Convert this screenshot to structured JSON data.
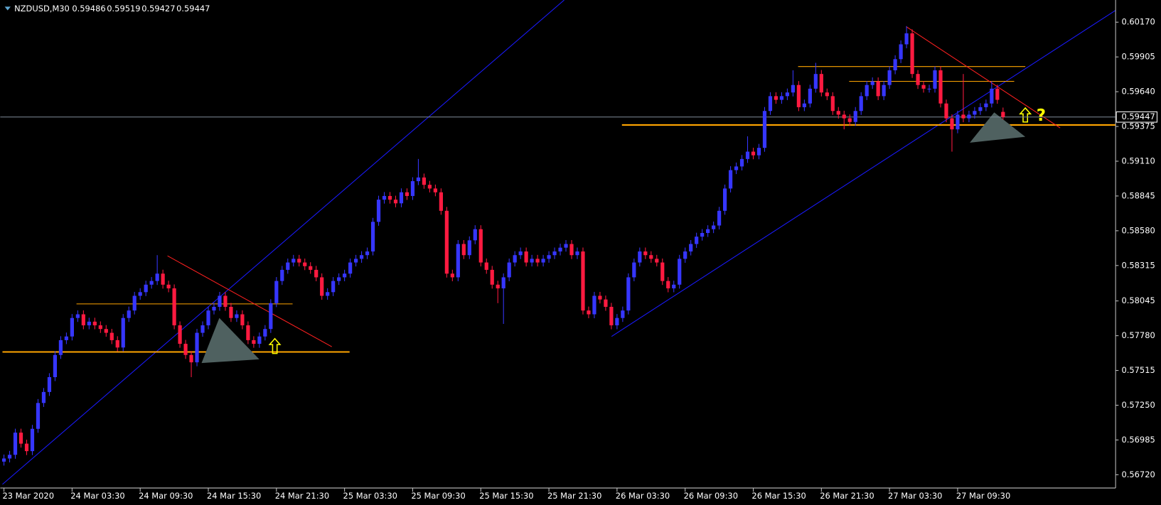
{
  "chart_data": {
    "type": "candlestick",
    "symbol": "NZDUSD,M30",
    "up_color": "#3636ff",
    "down_color": "#ff1a40",
    "price_line_color": "#7f8c99",
    "ylim": [
      0.56619,
      0.60339
    ],
    "yticks": [
      {
        "value": 0.5672,
        "label": "0.56720"
      },
      {
        "value": 0.56985,
        "label": "0.56985"
      },
      {
        "value": 0.5725,
        "label": "0.57250"
      },
      {
        "value": 0.57515,
        "label": "0.57515"
      },
      {
        "value": 0.5778,
        "label": "0.57780"
      },
      {
        "value": 0.58045,
        "label": "0.58045"
      },
      {
        "value": 0.58315,
        "label": "0.58315"
      },
      {
        "value": 0.5858,
        "label": "0.58580"
      },
      {
        "value": 0.58845,
        "label": "0.58845"
      },
      {
        "value": 0.5911,
        "label": "0.59110"
      },
      {
        "value": 0.59375,
        "label": "0.59375"
      },
      {
        "value": 0.5964,
        "label": "0.59640"
      },
      {
        "value": 0.59905,
        "label": "0.59905"
      },
      {
        "value": 0.6017,
        "label": "0.60170"
      }
    ],
    "xticks": [
      "23 Mar 2020",
      "24 Mar 03:30",
      "24 Mar 09:30",
      "24 Mar 15:30",
      "24 Mar 21:30",
      "25 Mar 03:30",
      "25 Mar 09:30",
      "25 Mar 15:30",
      "25 Mar 21:30",
      "26 Mar 03:30",
      "26 Mar 09:30",
      "26 Mar 15:30",
      "26 Mar 21:30",
      "27 Mar 03:30",
      "27 Mar 09:30"
    ],
    "annotations": [
      "?"
    ],
    "candles": [
      [
        0.5682,
        0.56874,
        0.5679,
        0.56844
      ],
      [
        0.56844,
        0.56902,
        0.56814,
        0.56872
      ],
      [
        0.56872,
        0.57071,
        0.56842,
        0.57041
      ],
      [
        0.57041,
        0.57071,
        0.56927,
        0.56957
      ],
      [
        0.56957,
        0.56987,
        0.5687,
        0.569
      ],
      [
        0.569,
        0.571,
        0.5687,
        0.5707
      ],
      [
        0.5707,
        0.57297,
        0.5704,
        0.57267
      ],
      [
        0.57267,
        0.57381,
        0.57237,
        0.57351
      ],
      [
        0.57351,
        0.57494,
        0.57321,
        0.57464
      ],
      [
        0.57464,
        0.57663,
        0.57434,
        0.57633
      ],
      [
        0.57633,
        0.57776,
        0.57603,
        0.57746
      ],
      [
        0.57746,
        0.57804,
        0.57716,
        0.57774
      ],
      [
        0.57774,
        0.57945,
        0.57744,
        0.57915
      ],
      [
        0.57915,
        0.57973,
        0.57885,
        0.57943
      ],
      [
        0.57943,
        0.57973,
        0.57829,
        0.57859
      ],
      [
        0.57859,
        0.57917,
        0.57829,
        0.57887
      ],
      [
        0.57887,
        0.57917,
        0.57829,
        0.57859
      ],
      [
        0.57859,
        0.57889,
        0.57801,
        0.57831
      ],
      [
        0.57831,
        0.57861,
        0.57772,
        0.57802
      ],
      [
        0.57802,
        0.57832,
        0.57716,
        0.57746
      ],
      [
        0.57746,
        0.57776,
        0.5766,
        0.5769
      ],
      [
        0.5769,
        0.57945,
        0.5766,
        0.57915
      ],
      [
        0.57915,
        0.58002,
        0.57885,
        0.57972
      ],
      [
        0.57972,
        0.58114,
        0.57942,
        0.58084
      ],
      [
        0.58084,
        0.58142,
        0.58054,
        0.58112
      ],
      [
        0.58112,
        0.58199,
        0.58082,
        0.58169
      ],
      [
        0.58169,
        0.58227,
        0.58139,
        0.58197
      ],
      [
        0.58197,
        0.58394,
        0.58167,
        0.58253
      ],
      [
        0.58253,
        0.58283,
        0.58139,
        0.58169
      ],
      [
        0.58169,
        0.58199,
        0.58111,
        0.58141
      ],
      [
        0.58141,
        0.58171,
        0.57829,
        0.57859
      ],
      [
        0.57859,
        0.57889,
        0.57688,
        0.57718
      ],
      [
        0.57718,
        0.57748,
        0.57603,
        0.57633
      ],
      [
        0.57633,
        0.57663,
        0.57464,
        0.57577
      ],
      [
        0.57577,
        0.57832,
        0.57547,
        0.57802
      ],
      [
        0.57802,
        0.57889,
        0.57772,
        0.57859
      ],
      [
        0.57859,
        0.58002,
        0.57829,
        0.57972
      ],
      [
        0.57972,
        0.5803,
        0.57942,
        0.58
      ],
      [
        0.58,
        0.58114,
        0.5797,
        0.58084
      ],
      [
        0.58084,
        0.58114,
        0.5797,
        0.58
      ],
      [
        0.58,
        0.5803,
        0.57885,
        0.57915
      ],
      [
        0.57915,
        0.57973,
        0.57885,
        0.57943
      ],
      [
        0.57943,
        0.57973,
        0.57829,
        0.57859
      ],
      [
        0.57859,
        0.57889,
        0.57716,
        0.57746
      ],
      [
        0.57746,
        0.57776,
        0.57688,
        0.57718
      ],
      [
        0.57718,
        0.57804,
        0.57688,
        0.57774
      ],
      [
        0.57774,
        0.57861,
        0.57744,
        0.57831
      ],
      [
        0.57831,
        0.58058,
        0.57801,
        0.58028
      ],
      [
        0.58028,
        0.58227,
        0.57998,
        0.58197
      ],
      [
        0.58197,
        0.58312,
        0.58167,
        0.58282
      ],
      [
        0.58282,
        0.58368,
        0.58252,
        0.58338
      ],
      [
        0.58338,
        0.58396,
        0.58308,
        0.58366
      ],
      [
        0.58366,
        0.58396,
        0.58308,
        0.58338
      ],
      [
        0.58338,
        0.58368,
        0.5828,
        0.5831
      ],
      [
        0.5831,
        0.5834,
        0.58252,
        0.58282
      ],
      [
        0.58282,
        0.58312,
        0.58195,
        0.58225
      ],
      [
        0.58225,
        0.58255,
        0.58054,
        0.58084
      ],
      [
        0.58084,
        0.58142,
        0.58054,
        0.58112
      ],
      [
        0.58112,
        0.58227,
        0.58082,
        0.58197
      ],
      [
        0.58197,
        0.58255,
        0.58167,
        0.58225
      ],
      [
        0.58225,
        0.58283,
        0.58195,
        0.58253
      ],
      [
        0.58253,
        0.58368,
        0.58223,
        0.58338
      ],
      [
        0.58338,
        0.58396,
        0.58308,
        0.58366
      ],
      [
        0.58366,
        0.58424,
        0.58336,
        0.58394
      ],
      [
        0.58394,
        0.58452,
        0.58364,
        0.58422
      ],
      [
        0.58422,
        0.58678,
        0.58392,
        0.58648
      ],
      [
        0.58648,
        0.58847,
        0.58618,
        0.58817
      ],
      [
        0.58817,
        0.58875,
        0.58787,
        0.58845
      ],
      [
        0.58845,
        0.58875,
        0.58787,
        0.58817
      ],
      [
        0.58817,
        0.58847,
        0.58759,
        0.58789
      ],
      [
        0.58789,
        0.58903,
        0.58759,
        0.58873
      ],
      [
        0.58873,
        0.58903,
        0.58815,
        0.58845
      ],
      [
        0.58845,
        0.58988,
        0.58815,
        0.58958
      ],
      [
        0.58958,
        0.59127,
        0.58928,
        0.58986
      ],
      [
        0.58986,
        0.59016,
        0.589,
        0.5893
      ],
      [
        0.5893,
        0.5896,
        0.58872,
        0.58902
      ],
      [
        0.58902,
        0.58932,
        0.58843,
        0.58873
      ],
      [
        0.58873,
        0.58903,
        0.58702,
        0.58732
      ],
      [
        0.58732,
        0.58762,
        0.58223,
        0.58253
      ],
      [
        0.58253,
        0.58283,
        0.58195,
        0.58225
      ],
      [
        0.58225,
        0.58509,
        0.58195,
        0.58479
      ],
      [
        0.58479,
        0.58509,
        0.58364,
        0.58394
      ],
      [
        0.58394,
        0.58537,
        0.58364,
        0.58507
      ],
      [
        0.58507,
        0.58622,
        0.58477,
        0.58592
      ],
      [
        0.58592,
        0.58622,
        0.58308,
        0.58338
      ],
      [
        0.58338,
        0.58368,
        0.58252,
        0.58282
      ],
      [
        0.58282,
        0.58312,
        0.58139,
        0.58169
      ],
      [
        0.58169,
        0.58199,
        0.58028,
        0.58141
      ],
      [
        0.58141,
        0.58255,
        0.5787,
        0.58225
      ],
      [
        0.58225,
        0.58368,
        0.58195,
        0.58338
      ],
      [
        0.58338,
        0.58424,
        0.58308,
        0.58394
      ],
      [
        0.58394,
        0.58452,
        0.58364,
        0.58422
      ],
      [
        0.58422,
        0.58452,
        0.58308,
        0.58338
      ],
      [
        0.58338,
        0.58396,
        0.58308,
        0.58366
      ],
      [
        0.58366,
        0.58396,
        0.58308,
        0.58338
      ],
      [
        0.58338,
        0.58396,
        0.58308,
        0.58366
      ],
      [
        0.58366,
        0.58424,
        0.58336,
        0.58394
      ],
      [
        0.58394,
        0.58452,
        0.58364,
        0.58422
      ],
      [
        0.58422,
        0.58481,
        0.58392,
        0.58451
      ],
      [
        0.58451,
        0.58509,
        0.58421,
        0.58479
      ],
      [
        0.58479,
        0.58509,
        0.58364,
        0.58394
      ],
      [
        0.58394,
        0.58452,
        0.58364,
        0.58422
      ],
      [
        0.58422,
        0.58452,
        0.57942,
        0.57972
      ],
      [
        0.57972,
        0.58002,
        0.57913,
        0.57943
      ],
      [
        0.57943,
        0.58114,
        0.57913,
        0.58084
      ],
      [
        0.58084,
        0.58114,
        0.58026,
        0.58056
      ],
      [
        0.58056,
        0.58086,
        0.5797,
        0.58
      ],
      [
        0.58,
        0.5803,
        0.57829,
        0.57859
      ],
      [
        0.57859,
        0.57945,
        0.57829,
        0.57915
      ],
      [
        0.57915,
        0.58002,
        0.57885,
        0.57972
      ],
      [
        0.57972,
        0.58255,
        0.57942,
        0.58225
      ],
      [
        0.58225,
        0.58368,
        0.58195,
        0.58338
      ],
      [
        0.58338,
        0.58452,
        0.58308,
        0.58422
      ],
      [
        0.58422,
        0.58452,
        0.58364,
        0.58394
      ],
      [
        0.58394,
        0.58424,
        0.58336,
        0.58366
      ],
      [
        0.58366,
        0.58396,
        0.58308,
        0.58338
      ],
      [
        0.58338,
        0.58368,
        0.58167,
        0.58197
      ],
      [
        0.58197,
        0.58227,
        0.58111,
        0.58141
      ],
      [
        0.58141,
        0.58199,
        0.58111,
        0.58169
      ],
      [
        0.58169,
        0.58396,
        0.58139,
        0.58366
      ],
      [
        0.58366,
        0.58452,
        0.58336,
        0.58422
      ],
      [
        0.58422,
        0.58509,
        0.58392,
        0.58479
      ],
      [
        0.58479,
        0.58565,
        0.58449,
        0.58535
      ],
      [
        0.58535,
        0.58593,
        0.58505,
        0.58563
      ],
      [
        0.58563,
        0.58622,
        0.58533,
        0.58592
      ],
      [
        0.58592,
        0.5865,
        0.58562,
        0.5862
      ],
      [
        0.5862,
        0.58762,
        0.5859,
        0.58732
      ],
      [
        0.58732,
        0.58932,
        0.58702,
        0.58902
      ],
      [
        0.58902,
        0.59072,
        0.58872,
        0.59042
      ],
      [
        0.59042,
        0.591,
        0.59012,
        0.5907
      ],
      [
        0.5907,
        0.59157,
        0.5904,
        0.59127
      ],
      [
        0.59127,
        0.593,
        0.59097,
        0.59183
      ],
      [
        0.59183,
        0.59213,
        0.59125,
        0.59155
      ],
      [
        0.59155,
        0.59242,
        0.59125,
        0.59212
      ],
      [
        0.59212,
        0.59523,
        0.59182,
        0.59493
      ],
      [
        0.59493,
        0.59636,
        0.59463,
        0.59606
      ],
      [
        0.59606,
        0.59636,
        0.59548,
        0.59578
      ],
      [
        0.59578,
        0.59636,
        0.59548,
        0.59606
      ],
      [
        0.59606,
        0.59664,
        0.59576,
        0.59634
      ],
      [
        0.59634,
        0.59803,
        0.59604,
        0.59691
      ],
      [
        0.59691,
        0.59721,
        0.59492,
        0.59522
      ],
      [
        0.59522,
        0.5958,
        0.59492,
        0.5955
      ],
      [
        0.5955,
        0.59693,
        0.5952,
        0.59663
      ],
      [
        0.59663,
        0.5986,
        0.59633,
        0.59775
      ],
      [
        0.59775,
        0.59805,
        0.59604,
        0.59634
      ],
      [
        0.59634,
        0.59664,
        0.59576,
        0.59606
      ],
      [
        0.59606,
        0.59636,
        0.59463,
        0.59493
      ],
      [
        0.59493,
        0.59523,
        0.59435,
        0.59465
      ],
      [
        0.59465,
        0.59495,
        0.59353,
        0.59437
      ],
      [
        0.59437,
        0.59467,
        0.59379,
        0.59409
      ],
      [
        0.59409,
        0.59523,
        0.59379,
        0.59493
      ],
      [
        0.59493,
        0.59636,
        0.59463,
        0.59606
      ],
      [
        0.59606,
        0.59721,
        0.59576,
        0.59691
      ],
      [
        0.59691,
        0.59749,
        0.59661,
        0.59719
      ],
      [
        0.59719,
        0.59749,
        0.59576,
        0.59606
      ],
      [
        0.59606,
        0.59721,
        0.59576,
        0.59691
      ],
      [
        0.59691,
        0.59833,
        0.59661,
        0.59803
      ],
      [
        0.59803,
        0.59918,
        0.59773,
        0.59888
      ],
      [
        0.59888,
        0.60031,
        0.59858,
        0.60001
      ],
      [
        0.60001,
        0.6014,
        0.59971,
        0.60085
      ],
      [
        0.60085,
        0.60115,
        0.59745,
        0.59775
      ],
      [
        0.59775,
        0.59805,
        0.59661,
        0.59691
      ],
      [
        0.59691,
        0.59721,
        0.59633,
        0.59663
      ],
      [
        0.59663,
        0.59693,
        0.59633,
        0.59663
      ],
      [
        0.59663,
        0.59833,
        0.59633,
        0.59803
      ],
      [
        0.59803,
        0.59833,
        0.5952,
        0.5955
      ],
      [
        0.5955,
        0.5958,
        0.59407,
        0.59437
      ],
      [
        0.59437,
        0.59467,
        0.59183,
        0.59353
      ],
      [
        0.59353,
        0.59495,
        0.59323,
        0.59465
      ],
      [
        0.59465,
        0.59775,
        0.59407,
        0.59437
      ],
      [
        0.59437,
        0.59495,
        0.59407,
        0.59465
      ],
      [
        0.59465,
        0.59523,
        0.59435,
        0.59493
      ],
      [
        0.59493,
        0.59552,
        0.59463,
        0.59522
      ],
      [
        0.59522,
        0.5958,
        0.59492,
        0.5955
      ],
      [
        0.5955,
        0.5972,
        0.5952,
        0.59663
      ],
      [
        0.59663,
        0.59693,
        0.59548,
        0.59578
      ],
      [
        0.59486,
        0.59519,
        0.59427,
        0.59447
      ]
    ]
  }
}
